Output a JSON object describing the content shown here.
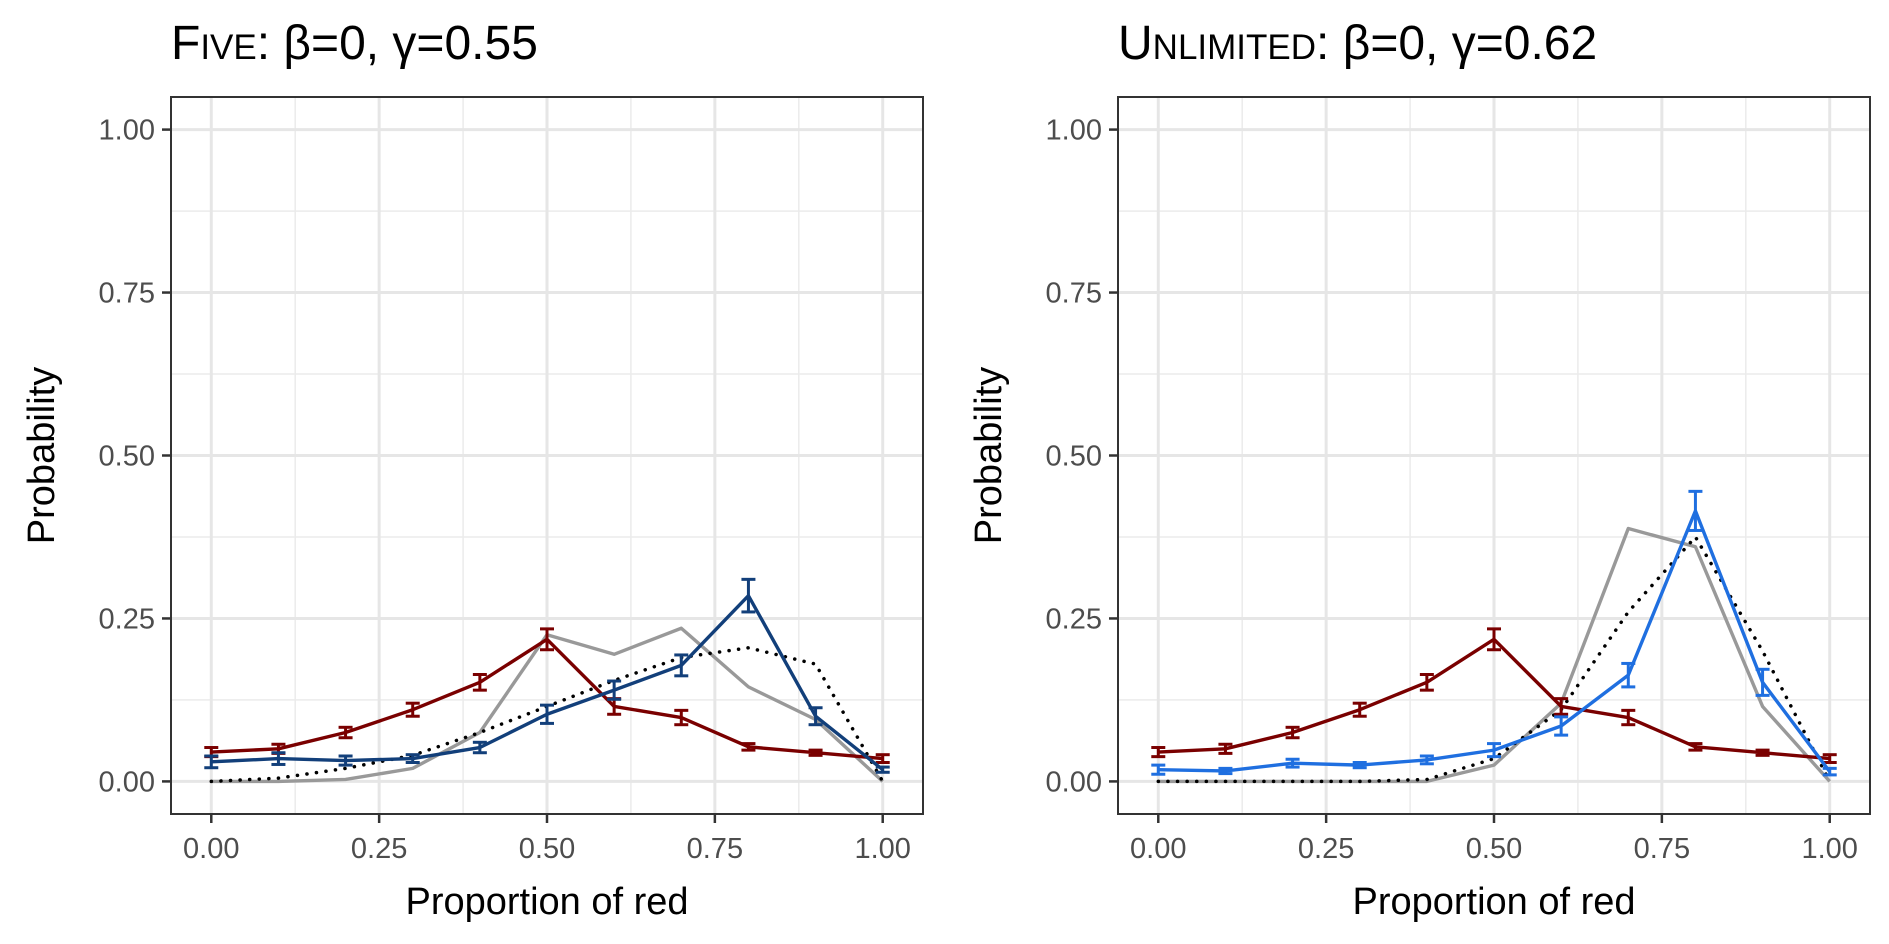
{
  "chart_data": [
    {
      "type": "line",
      "title_word": "Five",
      "title_params": ": β=0, γ=0.55",
      "xlabel": "Proportion of red",
      "ylabel": "Probability",
      "xlim": [
        -0.06,
        1.06
      ],
      "ylim": [
        -0.05,
        1.05
      ],
      "x_ticks": [
        "0.00",
        "0.25",
        "0.50",
        "0.75",
        "1.00"
      ],
      "y_ticks": [
        "0.00",
        "0.25",
        "0.50",
        "0.75",
        "1.00"
      ],
      "grid": true,
      "series": [
        {
          "color": "#999999",
          "style": "solid",
          "x": [
            0,
            0.1,
            0.2,
            0.3,
            0.4,
            0.5,
            0.6,
            0.7,
            0.8,
            0.9,
            1.0
          ],
          "values": [
            0.0,
            0.0,
            0.003,
            0.02,
            0.075,
            0.225,
            0.195,
            0.235,
            0.145,
            0.095,
            0.0
          ]
        },
        {
          "color": "#000000",
          "style": "dotted",
          "x": [
            0,
            0.1,
            0.2,
            0.3,
            0.4,
            0.5,
            0.6,
            0.7,
            0.8,
            0.9,
            1.0
          ],
          "values": [
            0.0,
            0.005,
            0.02,
            0.04,
            0.075,
            0.115,
            0.155,
            0.19,
            0.205,
            0.18,
            0.0
          ]
        },
        {
          "color": "#7a0000",
          "style": "solid",
          "error_bars": true,
          "x": [
            0,
            0.1,
            0.2,
            0.3,
            0.4,
            0.5,
            0.6,
            0.7,
            0.8,
            0.9,
            1.0
          ],
          "values": [
            0.045,
            0.05,
            0.075,
            0.11,
            0.152,
            0.218,
            0.115,
            0.098,
            0.053,
            0.044,
            0.035
          ],
          "errors": [
            0.007,
            0.007,
            0.008,
            0.01,
            0.012,
            0.016,
            0.012,
            0.011,
            0.005,
            0.004,
            0.006
          ]
        },
        {
          "color": "#123f7a",
          "style": "solid",
          "error_bars": true,
          "x": [
            0,
            0.1,
            0.2,
            0.3,
            0.4,
            0.5,
            0.6,
            0.7,
            0.8,
            0.9,
            1.0
          ],
          "values": [
            0.03,
            0.035,
            0.032,
            0.035,
            0.052,
            0.103,
            0.14,
            0.178,
            0.285,
            0.1,
            0.018
          ],
          "errors": [
            0.009,
            0.009,
            0.007,
            0.006,
            0.008,
            0.014,
            0.014,
            0.016,
            0.025,
            0.013,
            0.004
          ]
        }
      ]
    },
    {
      "type": "line",
      "title_word": "Unlimited",
      "title_params": ": β=0, γ=0.62",
      "xlabel": "Proportion of red",
      "ylabel": "Probability",
      "xlim": [
        -0.06,
        1.06
      ],
      "ylim": [
        -0.05,
        1.05
      ],
      "x_ticks": [
        "0.00",
        "0.25",
        "0.50",
        "0.75",
        "1.00"
      ],
      "y_ticks": [
        "0.00",
        "0.25",
        "0.50",
        "0.75",
        "1.00"
      ],
      "grid": true,
      "series": [
        {
          "color": "#999999",
          "style": "solid",
          "x": [
            0,
            0.1,
            0.2,
            0.3,
            0.4,
            0.5,
            0.6,
            0.7,
            0.8,
            0.9,
            1.0
          ],
          "values": [
            0.0,
            0.0,
            0.0,
            0.0,
            0.0,
            0.025,
            0.12,
            0.388,
            0.36,
            0.115,
            0.0
          ]
        },
        {
          "color": "#000000",
          "style": "dotted",
          "x": [
            0,
            0.1,
            0.2,
            0.3,
            0.4,
            0.5,
            0.6,
            0.7,
            0.8,
            0.9,
            1.0
          ],
          "values": [
            0.0,
            0.0,
            0.0,
            0.0,
            0.003,
            0.035,
            0.11,
            0.26,
            0.375,
            0.2,
            0.0
          ]
        },
        {
          "color": "#7a0000",
          "style": "solid",
          "error_bars": true,
          "x": [
            0,
            0.1,
            0.2,
            0.3,
            0.4,
            0.5,
            0.6,
            0.7,
            0.8,
            0.9,
            1.0
          ],
          "values": [
            0.045,
            0.05,
            0.075,
            0.11,
            0.152,
            0.218,
            0.115,
            0.098,
            0.053,
            0.044,
            0.035
          ],
          "errors": [
            0.007,
            0.007,
            0.008,
            0.01,
            0.012,
            0.016,
            0.012,
            0.011,
            0.005,
            0.004,
            0.006
          ]
        },
        {
          "color": "#1f6fe0",
          "style": "solid",
          "error_bars": true,
          "x": [
            0,
            0.1,
            0.2,
            0.3,
            0.4,
            0.5,
            0.6,
            0.7,
            0.8,
            0.9,
            1.0
          ],
          "values": [
            0.018,
            0.016,
            0.028,
            0.025,
            0.033,
            0.048,
            0.085,
            0.163,
            0.415,
            0.152,
            0.015
          ],
          "errors": [
            0.007,
            0.004,
            0.006,
            0.004,
            0.006,
            0.01,
            0.014,
            0.018,
            0.03,
            0.02,
            0.005
          ]
        }
      ]
    }
  ]
}
